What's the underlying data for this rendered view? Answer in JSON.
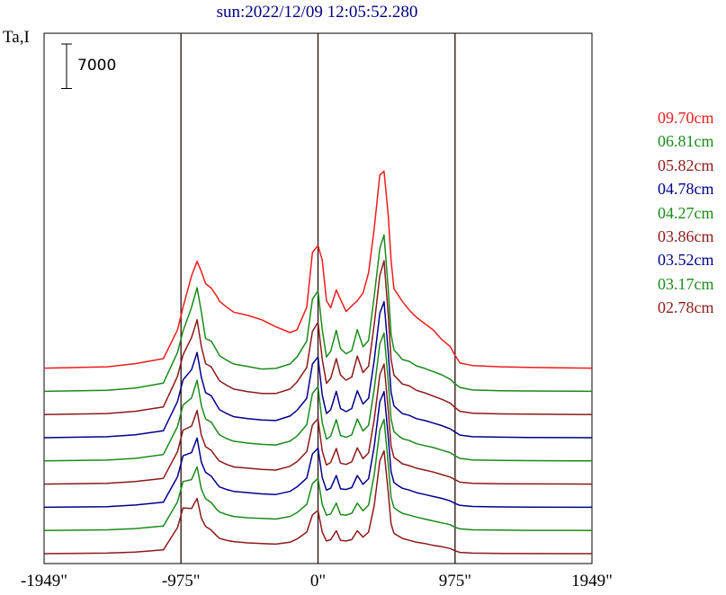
{
  "chart_data": {
    "type": "line",
    "title": "sun:2022/12/09 12:05:52.280",
    "ylabel": "Ta,I",
    "scale_bar_label": "7000",
    "scale_bar_value": 7000,
    "x_ticks": [
      {
        "value": -1949,
        "label": "-1949\""
      },
      {
        "value": -975,
        "label": "-975\""
      },
      {
        "value": 0,
        "label": "0\""
      },
      {
        "value": 975,
        "label": "975\""
      },
      {
        "value": 1949,
        "label": "1949\""
      }
    ],
    "xlim": [
      -1949,
      1949
    ],
    "vertical_lines": [
      -975,
      0,
      975
    ],
    "profile_x": [
      -1949,
      -1500,
      -1300,
      -1100,
      -1000,
      -960,
      -900,
      -860,
      -830,
      -800,
      -760,
      -720,
      -700,
      -650,
      -600,
      -500,
      -400,
      -300,
      -200,
      -150,
      -80,
      -40,
      0,
      30,
      60,
      90,
      130,
      160,
      200,
      240,
      280,
      320,
      360,
      400,
      440,
      470,
      500,
      520,
      540,
      570,
      600,
      650,
      700,
      760,
      820,
      880,
      940,
      975,
      1010,
      1100,
      1300,
      1500,
      1949
    ],
    "series": [
      {
        "name": "09.70cm",
        "color": "#ee1c1c",
        "offset": 0,
        "values": [
          0,
          200,
          700,
          1500,
          6000,
          9600,
          14500,
          16800,
          15200,
          13300,
          12600,
          11300,
          10500,
          9600,
          8800,
          8300,
          7600,
          6500,
          5600,
          6000,
          9600,
          18200,
          19300,
          17000,
          10600,
          9500,
          12300,
          10800,
          8900,
          9800,
          10600,
          11800,
          15000,
          22000,
          30400,
          31000,
          24000,
          17000,
          12500,
          11500,
          10500,
          9100,
          8000,
          7000,
          6000,
          4500,
          3400,
          2000,
          800,
          400,
          200,
          100,
          0
        ]
      },
      {
        "name": "06.81cm",
        "color": "#1a8a1a",
        "offset": 1,
        "values": [
          0,
          150,
          500,
          1300,
          6100,
          9500,
          13200,
          16300,
          12500,
          8300,
          7900,
          6400,
          5600,
          4900,
          4300,
          3900,
          3500,
          3600,
          4300,
          5400,
          7900,
          14500,
          15800,
          9700,
          5400,
          6300,
          9600,
          6700,
          5900,
          6400,
          9700,
          7000,
          8000,
          15000,
          22500,
          24600,
          16000,
          9000,
          6500,
          5800,
          5000,
          4700,
          4000,
          3600,
          3100,
          2600,
          1900,
          1200,
          600,
          200,
          100,
          50,
          0
        ]
      },
      {
        "name": "05.82cm",
        "color": "#8b1a1a",
        "offset": 2,
        "values": [
          0,
          150,
          500,
          1200,
          6000,
          9400,
          12100,
          14900,
          10700,
          8000,
          7500,
          6000,
          5300,
          4600,
          4000,
          3600,
          3300,
          3300,
          4000,
          5100,
          7400,
          13100,
          14500,
          8700,
          4900,
          5700,
          8800,
          6200,
          5400,
          5900,
          9200,
          6600,
          7600,
          14200,
          21900,
          24200,
          15600,
          8700,
          6200,
          5500,
          4800,
          4500,
          3800,
          3400,
          2900,
          2400,
          1800,
          1100,
          500,
          200,
          100,
          50,
          0
        ]
      },
      {
        "name": "04.78cm",
        "color": "#00008b",
        "offset": 3,
        "values": [
          0,
          150,
          450,
          1100,
          5700,
          9100,
          10700,
          13400,
          9500,
          7100,
          6600,
          5100,
          4400,
          3800,
          3300,
          3000,
          2800,
          2700,
          3400,
          4300,
          6200,
          11600,
          12700,
          6700,
          3800,
          4400,
          7300,
          4600,
          4100,
          4600,
          7400,
          5300,
          6200,
          12200,
          19600,
          21400,
          13400,
          7200,
          5000,
          4400,
          3800,
          3500,
          3000,
          2700,
          2300,
          1900,
          1400,
          900,
          400,
          150,
          80,
          40,
          0
        ]
      },
      {
        "name": "04.27cm",
        "color": "#1a8a1a",
        "offset": 4,
        "values": [
          0,
          120,
          400,
          1000,
          5400,
          8800,
          9900,
          12700,
          8700,
          6600,
          6100,
          4700,
          4100,
          3500,
          3100,
          2800,
          2600,
          2500,
          3100,
          3900,
          5700,
          10600,
          11700,
          6000,
          3400,
          3900,
          6500,
          4000,
          3700,
          4100,
          6600,
          4700,
          5600,
          11300,
          18400,
          20100,
          12500,
          6600,
          4600,
          4000,
          3500,
          3200,
          2700,
          2400,
          2100,
          1700,
          1300,
          800,
          400,
          150,
          80,
          40,
          0
        ]
      },
      {
        "name": "03.86cm",
        "color": "#8b1a1a",
        "offset": 5,
        "values": [
          0,
          120,
          400,
          900,
          5100,
          8500,
          9100,
          11600,
          7700,
          5900,
          5300,
          4100,
          3600,
          3100,
          2700,
          2500,
          2300,
          2200,
          2800,
          3500,
          5100,
          9300,
          10300,
          5200,
          3000,
          3400,
          5600,
          3300,
          3100,
          3500,
          5700,
          4000,
          4900,
          10200,
          17200,
          18900,
          11600,
          6000,
          4200,
          3700,
          3200,
          2900,
          2500,
          2200,
          1900,
          1500,
          1100,
          700,
          300,
          120,
          60,
          30,
          0
        ]
      },
      {
        "name": "03.52cm",
        "color": "#00008b",
        "offset": 6,
        "values": [
          0,
          100,
          350,
          800,
          4800,
          8100,
          8600,
          10900,
          7100,
          5500,
          4900,
          3700,
          3200,
          2800,
          2500,
          2300,
          2100,
          2000,
          2500,
          3200,
          4600,
          8400,
          9300,
          4700,
          2700,
          3000,
          5000,
          2900,
          2800,
          3100,
          5000,
          3600,
          4500,
          9600,
          16600,
          18200,
          11000,
          5600,
          3900,
          3400,
          3000,
          2700,
          2300,
          2000,
          1700,
          1400,
          1000,
          600,
          300,
          120,
          60,
          30,
          0
        ]
      },
      {
        "name": "03.17cm",
        "color": "#1a8a1a",
        "offset": 7,
        "values": [
          0,
          100,
          300,
          700,
          4500,
          7700,
          8000,
          10000,
          6500,
          5000,
          4400,
          3300,
          2900,
          2500,
          2200,
          2000,
          1900,
          1800,
          2200,
          2800,
          4100,
          7400,
          8200,
          4100,
          2400,
          2600,
          4300,
          2500,
          2400,
          2700,
          4300,
          3100,
          4000,
          8800,
          15800,
          17500,
          10400,
          5200,
          3600,
          3100,
          2700,
          2400,
          2100,
          1800,
          1500,
          1200,
          900,
          500,
          250,
          100,
          50,
          20,
          0
        ]
      },
      {
        "name": "02.78cm",
        "color": "#8b1a1a",
        "offset": 8,
        "values": [
          0,
          80,
          250,
          600,
          4100,
          7200,
          7100,
          8700,
          5600,
          4300,
          3700,
          2800,
          2400,
          2100,
          1900,
          1700,
          1600,
          1500,
          1800,
          2300,
          3400,
          6100,
          6800,
          3400,
          2000,
          2200,
          3600,
          2100,
          2000,
          2200,
          3600,
          2600,
          3400,
          7600,
          14600,
          16200,
          9600,
          4700,
          3200,
          2800,
          2400,
          2100,
          1800,
          1600,
          1300,
          1100,
          800,
          450,
          200,
          80,
          40,
          20,
          0
        ]
      }
    ],
    "series_spacing": 3650,
    "grid": false,
    "legend": "right"
  }
}
